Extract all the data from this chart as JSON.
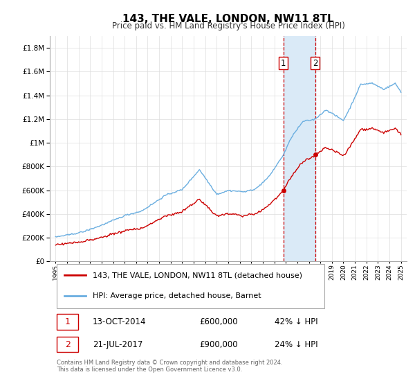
{
  "title": "143, THE VALE, LONDON, NW11 8TL",
  "subtitle": "Price paid vs. HM Land Registry's House Price Index (HPI)",
  "legend_line1": "143, THE VALE, LONDON, NW11 8TL (detached house)",
  "legend_line2": "HPI: Average price, detached house, Barnet",
  "footnote": "Contains HM Land Registry data © Crown copyright and database right 2024.\nThis data is licensed under the Open Government Licence v3.0.",
  "sale1_label": "1",
  "sale1_date": "13-OCT-2014",
  "sale1_price": "£600,000",
  "sale1_hpi": "42% ↓ HPI",
  "sale2_label": "2",
  "sale2_date": "21-JUL-2017",
  "sale2_price": "£900,000",
  "sale2_hpi": "24% ↓ HPI",
  "hpi_color": "#6aaee0",
  "sale_color": "#cc0000",
  "shade_color": "#daeaf7",
  "vline_color": "#cc0000",
  "ylim_max": 1900000,
  "sale1_x": 2014.79,
  "sale2_x": 2017.55
}
